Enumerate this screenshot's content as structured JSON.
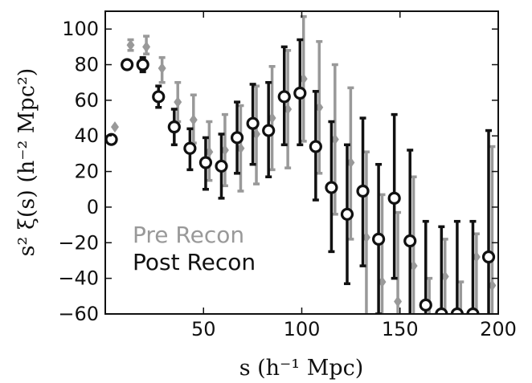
{
  "chart_data": {
    "type": "scatter",
    "xlabel": "s (h⁻¹ Mpc)",
    "ylabel": "s² ξ(s) (h⁻² Mpc²)",
    "xlim": [
      0,
      200
    ],
    "ylim": [
      -60,
      110
    ],
    "xticks": [
      50,
      100,
      150,
      200
    ],
    "yticks": [
      -60,
      -40,
      -20,
      0,
      20,
      40,
      60,
      80,
      100
    ],
    "grid": false,
    "legend": "lower-left",
    "series": [
      {
        "name": "Pre Recon",
        "color": "#999999",
        "marker": "diamond",
        "points": [
          {
            "x": 4,
            "y": 45,
            "lo": 45,
            "hi": 45
          },
          {
            "x": 12,
            "y": 91,
            "lo": 88,
            "hi": 94
          },
          {
            "x": 20,
            "y": 90,
            "lo": 86,
            "hi": 96
          },
          {
            "x": 28,
            "y": 78,
            "lo": 70,
            "hi": 84
          },
          {
            "x": 36,
            "y": 59,
            "lo": 48,
            "hi": 70
          },
          {
            "x": 44,
            "y": 49,
            "lo": 36,
            "hi": 63
          },
          {
            "x": 52,
            "y": 31,
            "lo": 15,
            "hi": 48
          },
          {
            "x": 60,
            "y": 32,
            "lo": 12,
            "hi": 52
          },
          {
            "x": 68,
            "y": 33,
            "lo": 9,
            "hi": 57
          },
          {
            "x": 76,
            "y": 41,
            "lo": 13,
            "hi": 68
          },
          {
            "x": 84,
            "y": 50,
            "lo": 21,
            "hi": 79
          },
          {
            "x": 92,
            "y": 55,
            "lo": 22,
            "hi": 88
          },
          {
            "x": 100,
            "y": 72,
            "lo": 37,
            "hi": 107
          },
          {
            "x": 108,
            "y": 56,
            "lo": 19,
            "hi": 93
          },
          {
            "x": 116,
            "y": 38,
            "lo": -4,
            "hi": 80
          },
          {
            "x": 124,
            "y": 25,
            "lo": -18,
            "hi": 67
          },
          {
            "x": 132,
            "y": -17,
            "lo": -65,
            "hi": 31
          },
          {
            "x": 140,
            "y": -42,
            "lo": -65,
            "hi": 7
          },
          {
            "x": 148,
            "y": -53,
            "lo": -65,
            "hi": -3
          },
          {
            "x": 156,
            "y": -33,
            "lo": -65,
            "hi": 17
          },
          {
            "x": 164,
            "y": -62,
            "lo": -65,
            "hi": -40
          },
          {
            "x": 172,
            "y": -39,
            "lo": -65,
            "hi": -18
          },
          {
            "x": 180,
            "y": -62,
            "lo": -65,
            "hi": -42
          },
          {
            "x": 188,
            "y": -28,
            "lo": -65,
            "hi": -15
          },
          {
            "x": 196,
            "y": -44,
            "lo": -65,
            "hi": 34
          }
        ]
      },
      {
        "name": "Post Recon",
        "color": "#111111",
        "marker": "open-circle",
        "points": [
          {
            "x": 4,
            "y": 38,
            "lo": 38,
            "hi": 38
          },
          {
            "x": 12,
            "y": 80,
            "lo": 80,
            "hi": 80
          },
          {
            "x": 20,
            "y": 80,
            "lo": 76,
            "hi": 84
          },
          {
            "x": 28,
            "y": 62,
            "lo": 56,
            "hi": 68
          },
          {
            "x": 36,
            "y": 45,
            "lo": 35,
            "hi": 55
          },
          {
            "x": 44,
            "y": 33,
            "lo": 21,
            "hi": 44
          },
          {
            "x": 52,
            "y": 25,
            "lo": 10,
            "hi": 39
          },
          {
            "x": 60,
            "y": 23,
            "lo": 5,
            "hi": 41
          },
          {
            "x": 68,
            "y": 39,
            "lo": 19,
            "hi": 59
          },
          {
            "x": 76,
            "y": 47,
            "lo": 24,
            "hi": 69
          },
          {
            "x": 84,
            "y": 43,
            "lo": 17,
            "hi": 70
          },
          {
            "x": 92,
            "y": 62,
            "lo": 35,
            "hi": 90
          },
          {
            "x": 100,
            "y": 64,
            "lo": 35,
            "hi": 94
          },
          {
            "x": 108,
            "y": 34,
            "lo": 4,
            "hi": 65
          },
          {
            "x": 116,
            "y": 11,
            "lo": -25,
            "hi": 48
          },
          {
            "x": 124,
            "y": -4,
            "lo": -43,
            "hi": 35
          },
          {
            "x": 132,
            "y": 9,
            "lo": -33,
            "hi": 50
          },
          {
            "x": 140,
            "y": -18,
            "lo": -60,
            "hi": 24
          },
          {
            "x": 148,
            "y": 5,
            "lo": -40,
            "hi": 52
          },
          {
            "x": 156,
            "y": -19,
            "lo": -65,
            "hi": 32
          },
          {
            "x": 164,
            "y": -55,
            "lo": -65,
            "hi": -8
          },
          {
            "x": 172,
            "y": -60,
            "lo": -65,
            "hi": -11
          },
          {
            "x": 180,
            "y": -60,
            "lo": -65,
            "hi": -8
          },
          {
            "x": 188,
            "y": -60,
            "lo": -65,
            "hi": -8
          },
          {
            "x": 196,
            "y": -28,
            "lo": -65,
            "hi": 43
          }
        ]
      }
    ]
  }
}
